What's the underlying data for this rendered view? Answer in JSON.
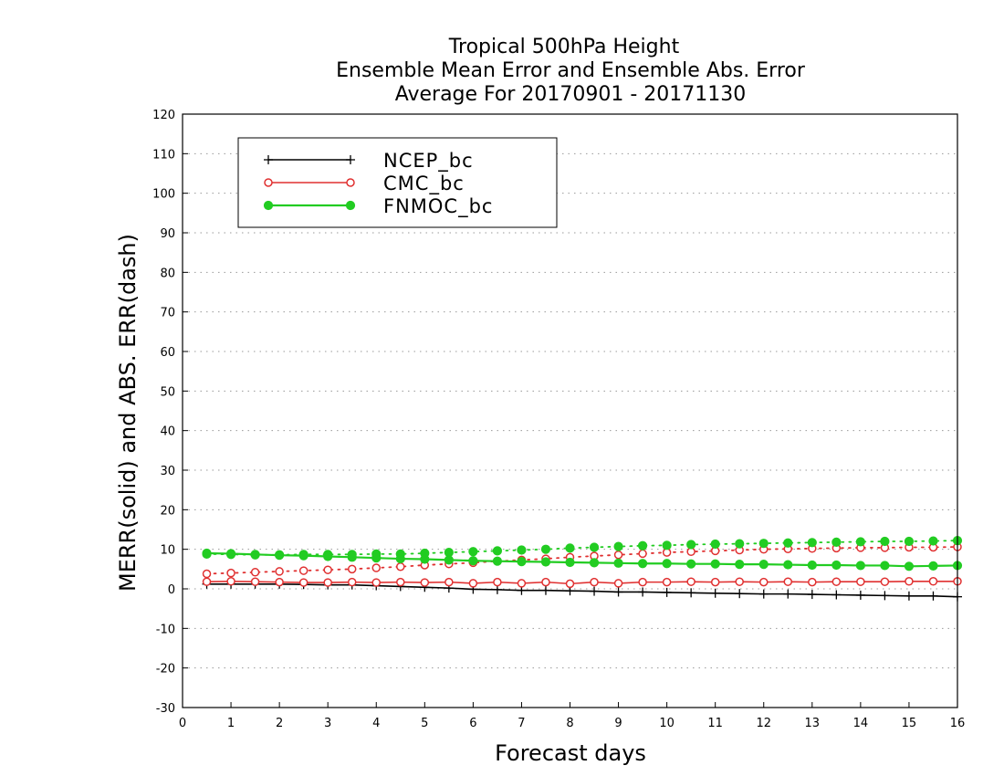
{
  "chart_data": {
    "type": "line",
    "title_lines": [
      "Tropical 500hPa Height",
      "Ensemble Mean Error and Ensemble Abs. Error",
      "Average For 20170901 - 20171130"
    ],
    "xlabel": "Forecast days",
    "ylabel": "MERR(solid) and ABS. ERR(dash)",
    "xlim": [
      0,
      16
    ],
    "ylim": [
      -30,
      120
    ],
    "x_ticks": [
      0,
      1,
      2,
      3,
      4,
      5,
      6,
      7,
      8,
      9,
      10,
      11,
      12,
      13,
      14,
      15,
      16
    ],
    "y_ticks": [
      -30,
      -20,
      -10,
      0,
      10,
      20,
      30,
      40,
      50,
      60,
      70,
      80,
      90,
      100,
      110,
      120
    ],
    "grid": "horizontal dotted",
    "legend_position": "top-left",
    "x": [
      0.5,
      1,
      1.5,
      2,
      2.5,
      3,
      3.5,
      4,
      4.5,
      5,
      5.5,
      6,
      6.5,
      7,
      7.5,
      8,
      8.5,
      9,
      9.5,
      10,
      10.5,
      11,
      11.5,
      12,
      12.5,
      13,
      13.5,
      14,
      14.5,
      15,
      15.5,
      16
    ],
    "series": [
      {
        "name": "NCEP_bc",
        "color": "#000000",
        "marker": "plus",
        "merr": [
          1.2,
          1.2,
          1.2,
          1.2,
          1.1,
          1.0,
          1.0,
          0.8,
          0.6,
          0.4,
          0.2,
          -0.1,
          -0.2,
          -0.4,
          -0.4,
          -0.5,
          -0.6,
          -0.8,
          -0.8,
          -0.9,
          -1.0,
          -1.1,
          -1.2,
          -1.3,
          -1.3,
          -1.4,
          -1.5,
          -1.6,
          -1.7,
          -1.8,
          -1.8,
          -2.0
        ],
        "abserr": null
      },
      {
        "name": "CMC_bc",
        "color": "#e03030",
        "marker": "open-circle",
        "merr": [
          1.8,
          1.9,
          1.8,
          1.7,
          1.6,
          1.6,
          1.7,
          1.6,
          1.7,
          1.6,
          1.7,
          1.4,
          1.7,
          1.4,
          1.7,
          1.3,
          1.7,
          1.4,
          1.7,
          1.7,
          1.8,
          1.7,
          1.8,
          1.7,
          1.8,
          1.7,
          1.8,
          1.8,
          1.8,
          1.9,
          1.9,
          1.9
        ],
        "abserr": [
          3.8,
          4.0,
          4.2,
          4.4,
          4.6,
          4.8,
          5.0,
          5.3,
          5.6,
          6.0,
          6.3,
          6.6,
          7.0,
          7.3,
          7.6,
          8.0,
          8.3,
          8.6,
          8.9,
          9.2,
          9.4,
          9.6,
          9.8,
          10.0,
          10.1,
          10.2,
          10.3,
          10.4,
          10.4,
          10.5,
          10.5,
          10.6
        ]
      },
      {
        "name": "FNMOC_bc",
        "color": "#22cc22",
        "marker": "filled-circle",
        "merr": [
          9.0,
          8.9,
          8.7,
          8.5,
          8.4,
          8.2,
          8.0,
          7.8,
          7.6,
          7.5,
          7.3,
          7.1,
          7.0,
          6.9,
          6.8,
          6.7,
          6.6,
          6.5,
          6.4,
          6.4,
          6.3,
          6.3,
          6.2,
          6.2,
          6.1,
          6.0,
          6.0,
          5.9,
          5.9,
          5.7,
          5.8,
          5.9
        ],
        "abserr": [
          8.8,
          8.7,
          8.6,
          8.6,
          8.7,
          8.7,
          8.7,
          8.8,
          8.8,
          9.0,
          9.2,
          9.4,
          9.6,
          9.8,
          10.0,
          10.3,
          10.5,
          10.7,
          10.9,
          11.0,
          11.2,
          11.3,
          11.4,
          11.5,
          11.6,
          11.7,
          11.8,
          11.9,
          12.0,
          12.0,
          12.1,
          12.2
        ]
      }
    ]
  }
}
